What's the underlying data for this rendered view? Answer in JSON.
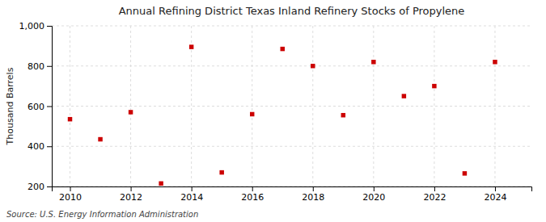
{
  "chart_data": {
    "type": "scatter",
    "title": "Annual Refining District Texas Inland Refinery Stocks of Propylene",
    "ylabel": "Thousand Barrels",
    "annotations": [
      "Source: U.S. Energy Information Administration"
    ],
    "x": [
      2010,
      2011,
      2012,
      2013,
      2014,
      2015,
      2016,
      2017,
      2018,
      2019,
      2020,
      2021,
      2022,
      2023,
      2024
    ],
    "values": [
      535,
      435,
      570,
      215,
      895,
      270,
      560,
      885,
      800,
      555,
      820,
      650,
      700,
      265,
      820
    ],
    "color": "#cc0000",
    "marker": "square",
    "xlim": [
      2009.4,
      2025.2
    ],
    "ylim": [
      200,
      1000
    ],
    "xticks": [
      2010,
      2012,
      2014,
      2016,
      2018,
      2020,
      2022,
      2024
    ],
    "yticks": [
      200,
      400,
      600,
      800,
      {
        "value": 1000,
        "label": "1,000"
      }
    ],
    "grid": true
  }
}
